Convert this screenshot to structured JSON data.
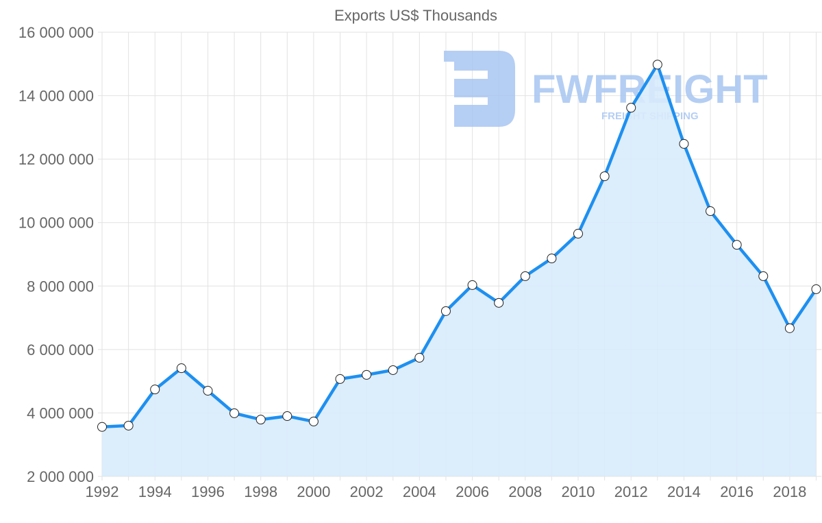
{
  "chart_data": {
    "type": "area",
    "title": "Exports US$ Thousands",
    "xlabel": "",
    "ylabel": "",
    "x": [
      1992,
      1993,
      1994,
      1995,
      1996,
      1997,
      1998,
      1999,
      2000,
      2001,
      2002,
      2003,
      2004,
      2005,
      2006,
      2007,
      2008,
      2009,
      2010,
      2011,
      2012,
      2013,
      2014,
      2015,
      2016,
      2017,
      2018,
      2019
    ],
    "series": [
      {
        "name": "Exports",
        "color": "#1e90f0",
        "fill": "#d8ebfc",
        "values": [
          3560000,
          3600000,
          4740000,
          5410000,
          4700000,
          3990000,
          3790000,
          3900000,
          3730000,
          5070000,
          5200000,
          5350000,
          5740000,
          7210000,
          8030000,
          7470000,
          8310000,
          8870000,
          9650000,
          11460000,
          13620000,
          14980000,
          12480000,
          10360000,
          9300000,
          8310000,
          6670000,
          7900000
        ]
      }
    ],
    "ylim": [
      2000000,
      16000000
    ],
    "xlim": [
      1992,
      2019
    ],
    "yticks": [
      "2 000 000",
      "4 000 000",
      "6 000 000",
      "8 000 000",
      "10 000 000",
      "12 000 000",
      "14 000 000",
      "16 000 000"
    ],
    "ytick_values": [
      2000000,
      4000000,
      6000000,
      8000000,
      10000000,
      12000000,
      14000000,
      16000000
    ],
    "xticks": [
      "1992",
      "1994",
      "1996",
      "1998",
      "2000",
      "2002",
      "2004",
      "2006",
      "2008",
      "2010",
      "2012",
      "2014",
      "2016",
      "2018"
    ],
    "grid": true,
    "legend": "none"
  },
  "watermark": {
    "brand": "FWFREIGHT",
    "tagline": "FREIGHT SHIPPING",
    "color": "#a8c6f2"
  }
}
